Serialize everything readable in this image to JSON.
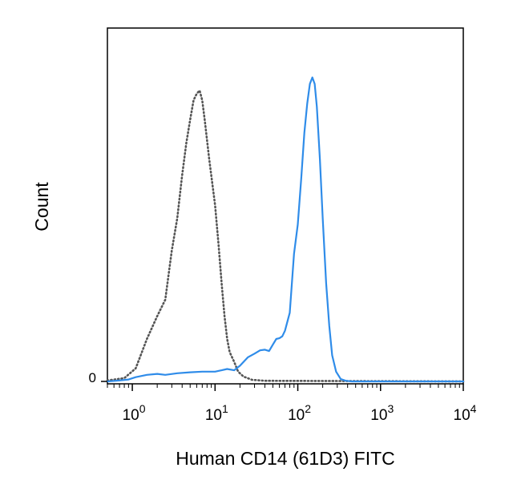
{
  "chart_data": {
    "type": "line",
    "xlabel": "Human CD14 (61D3) FITC",
    "ylabel": "Count",
    "x_scale": "log",
    "xlim": [
      0.5,
      10000
    ],
    "ylim": [
      0,
      100
    ],
    "grid": false,
    "x_ticks": [
      {
        "base": "10",
        "exp": "0",
        "value": 1
      },
      {
        "base": "10",
        "exp": "1",
        "value": 10
      },
      {
        "base": "10",
        "exp": "2",
        "value": 100
      },
      {
        "base": "10",
        "exp": "3",
        "value": 1000
      },
      {
        "base": "10",
        "exp": "4",
        "value": 10000
      }
    ],
    "y_ticks": [
      {
        "label": "0",
        "value": 0
      }
    ],
    "series": [
      {
        "style": "dotted",
        "color": "#555555",
        "points": [
          [
            0.5,
            0.3
          ],
          [
            0.8,
            1.0
          ],
          [
            1.1,
            4
          ],
          [
            1.5,
            13
          ],
          [
            2.0,
            20
          ],
          [
            2.5,
            25
          ],
          [
            3.0,
            40
          ],
          [
            3.5,
            50
          ],
          [
            4.0,
            63
          ],
          [
            4.5,
            73
          ],
          [
            5.0,
            80
          ],
          [
            5.5,
            86
          ],
          [
            6.0,
            88
          ],
          [
            6.5,
            89
          ],
          [
            7.0,
            86
          ],
          [
            7.5,
            80
          ],
          [
            8.5,
            68
          ],
          [
            10,
            54
          ],
          [
            11,
            42
          ],
          [
            12,
            30
          ],
          [
            13,
            20
          ],
          [
            14,
            13
          ],
          [
            15,
            9
          ],
          [
            17,
            6
          ],
          [
            19,
            3
          ],
          [
            22,
            1.5
          ],
          [
            28,
            0.5
          ],
          [
            40,
            0.2
          ],
          [
            10000,
            0
          ]
        ]
      },
      {
        "style": "solid",
        "color": "#2f8ce9",
        "points": [
          [
            0.5,
            0
          ],
          [
            0.7,
            0.3
          ],
          [
            0.9,
            0.6
          ],
          [
            1.1,
            1.3
          ],
          [
            1.5,
            2.0
          ],
          [
            2.0,
            2.3
          ],
          [
            2.5,
            2.0
          ],
          [
            3.5,
            2.5
          ],
          [
            5,
            2.8
          ],
          [
            7,
            3.0
          ],
          [
            10,
            3.0
          ],
          [
            12,
            3.4
          ],
          [
            14,
            3.8
          ],
          [
            17,
            3.4
          ],
          [
            20,
            4.8
          ],
          [
            25,
            7.4
          ],
          [
            30,
            8.5
          ],
          [
            35,
            9.5
          ],
          [
            40,
            9.7
          ],
          [
            45,
            9.3
          ],
          [
            50,
            11.3
          ],
          [
            55,
            13.0
          ],
          [
            60,
            13.2
          ],
          [
            65,
            13.8
          ],
          [
            70,
            15.5
          ],
          [
            80,
            21
          ],
          [
            90,
            39
          ],
          [
            100,
            48
          ],
          [
            110,
            62
          ],
          [
            120,
            76
          ],
          [
            130,
            85
          ],
          [
            140,
            91
          ],
          [
            150,
            93
          ],
          [
            160,
            91
          ],
          [
            170,
            84
          ],
          [
            185,
            68
          ],
          [
            200,
            50
          ],
          [
            220,
            30
          ],
          [
            240,
            17
          ],
          [
            260,
            8
          ],
          [
            290,
            3
          ],
          [
            330,
            0.7
          ],
          [
            380,
            0.2
          ],
          [
            450,
            0
          ],
          [
            10000,
            0
          ]
        ]
      }
    ]
  }
}
